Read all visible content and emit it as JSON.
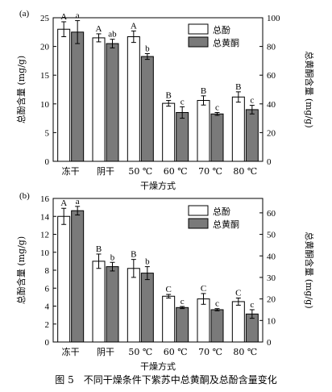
{
  "caption": "图 5　不同干燥条件下紫苏中总黄酮及总酚含量变化",
  "chart_data": [
    {
      "type": "bar",
      "panel_label": "(a)",
      "categories": [
        "冻干",
        "阴干",
        "50 ℃",
        "60 ℃",
        "70 ℃",
        "80 ℃"
      ],
      "xlabel": "干燥方式",
      "ylabel_left": "总酚含量 (mg/g)",
      "ylabel_right": "总黄酮含量 (mg/g)",
      "ylim_left": [
        0,
        25
      ],
      "ylim_right": [
        0,
        100
      ],
      "yticks_left": [
        0,
        5,
        10,
        15,
        20,
        25
      ],
      "yticks_right": [
        0,
        20,
        40,
        60,
        80,
        100
      ],
      "legend_position": "top-right",
      "series": [
        {
          "name": "总酚",
          "axis": "left",
          "color": "#ffffff",
          "values": [
            23.0,
            21.5,
            21.7,
            10.1,
            10.6,
            11.2
          ],
          "errors": [
            1.3,
            0.7,
            1.0,
            0.5,
            0.8,
            0.9
          ],
          "sig": [
            "A",
            "A",
            "A",
            "B",
            "B",
            "B"
          ]
        },
        {
          "name": "总黄酮",
          "axis": "right",
          "color": "#7a7a7a",
          "values": [
            90,
            82,
            73,
            34,
            33,
            36
          ],
          "errors": [
            8,
            3,
            2,
            4,
            1,
            3
          ],
          "sig": [
            "a",
            "ab",
            "b",
            "c",
            "c",
            "c"
          ]
        }
      ]
    },
    {
      "type": "bar",
      "panel_label": "(b)",
      "categories": [
        "冻干",
        "阴干",
        "50 ℃",
        "60 ℃",
        "70 ℃",
        "80 ℃"
      ],
      "xlabel": "干燥方式",
      "ylabel_left": "总酚含量 (mg/g)",
      "ylabel_right": "总黄酮含量 (mg/g)",
      "ylim_left": [
        0,
        16
      ],
      "ylim_right": [
        0,
        66.7
      ],
      "yticks_left": [
        0,
        2,
        4,
        6,
        8,
        10,
        12,
        14,
        16
      ],
      "yticks_right": [
        0,
        10,
        20,
        30,
        40,
        50,
        60
      ],
      "legend_position": "top-right",
      "series": [
        {
          "name": "总酚",
          "axis": "left",
          "color": "#ffffff",
          "values": [
            14.0,
            9.0,
            8.2,
            5.1,
            4.8,
            4.5
          ],
          "errors": [
            0.9,
            0.8,
            1.0,
            0.2,
            0.6,
            0.4
          ],
          "sig": [
            "A",
            "B",
            "B",
            "C",
            "C",
            "C"
          ]
        },
        {
          "name": "总黄酮",
          "axis": "right",
          "color": "#7a7a7a",
          "values": [
            61,
            35,
            32,
            16,
            15,
            13
          ],
          "errors": [
            2,
            2,
            3,
            0.5,
            0.5,
            2
          ],
          "sig": [
            "a",
            "b",
            "b",
            "c",
            "c",
            "c"
          ]
        }
      ]
    }
  ]
}
